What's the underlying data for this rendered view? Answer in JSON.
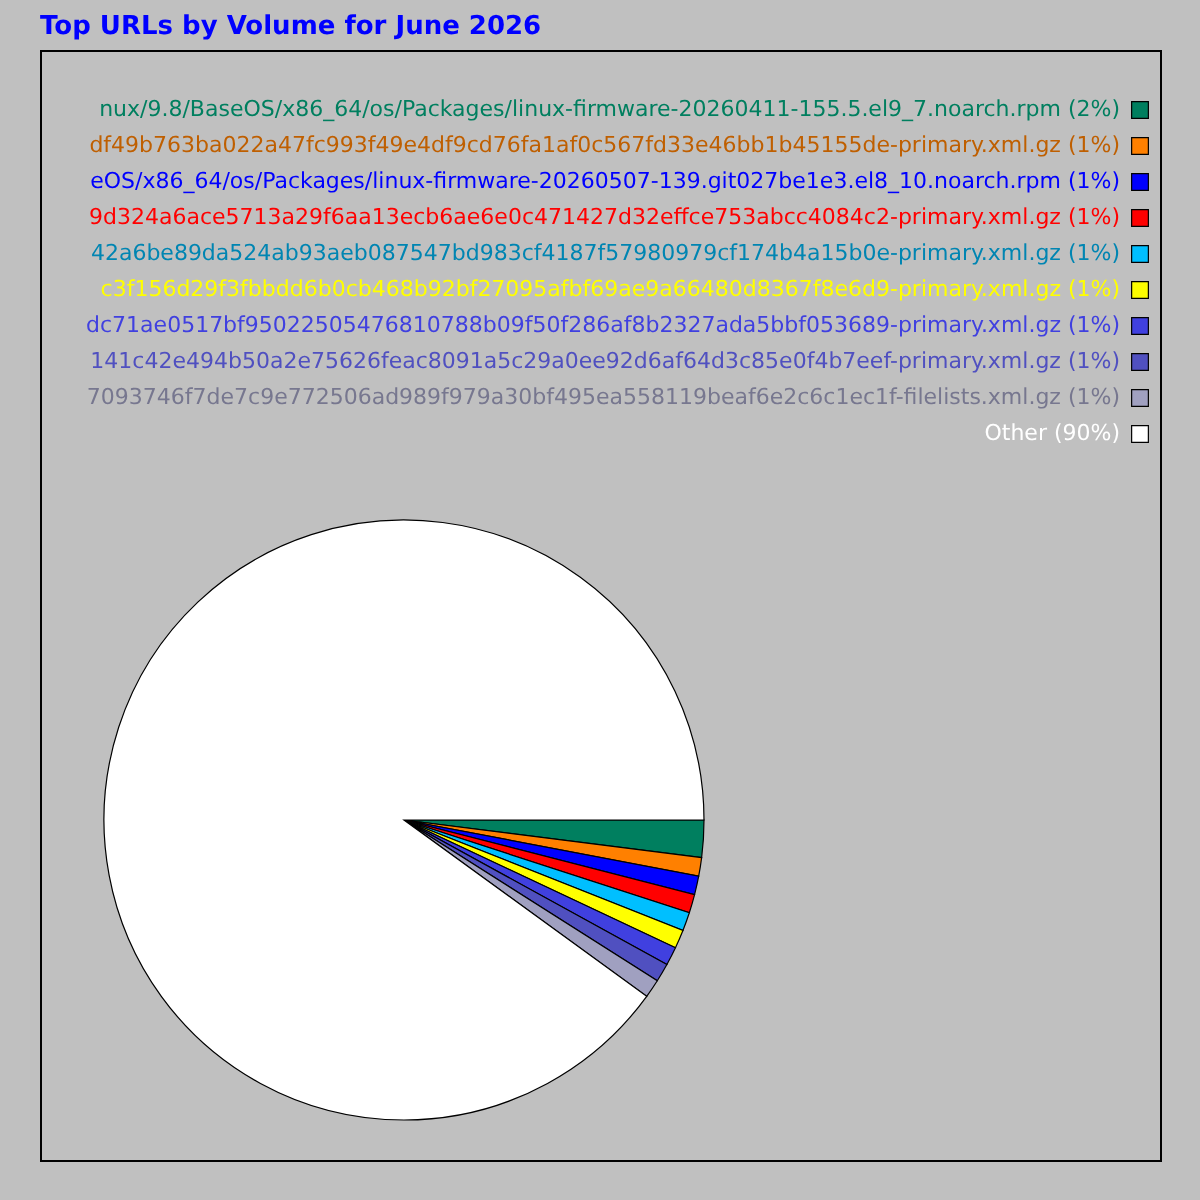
{
  "chart_data": {
    "type": "pie",
    "title": "Top URLs by Volume for June 2026",
    "categories": [
      "nux/9.8/BaseOS/x86_64/os/Packages/linux-firmware-20260411-155.5.el9_7.noarch.rpm",
      "df49b763ba022a47fc993f49e4df9cd76fa1af0c567fd33e46bb1b45155de-primary.xml.gz",
      "eOS/x86_64/os/Packages/linux-firmware-20260507-139.git027be1e3.el8_10.noarch.rpm",
      "9d324a6ace5713a29f6aa13ecb6ae6e0c471427d32effce753abcc4084c2-primary.xml.gz",
      "42a6be89da524ab93aeb087547bd983cf4187f57980979cf174b4a15b0e-primary.xml.gz",
      "c3f156d29f3fbbdd6b0cb468b92bf27095afbf69ae9a66480d8367f8e6d9-primary.xml.gz",
      "dc71ae0517bf95022505476810788b09f50f286af8b2327ada5bbf053689-primary.xml.gz",
      "141c42e494b50a2e75626feac8091a5c29a0ee92d6af64d3c85e0f4b7eef-primary.xml.gz",
      "7093746f7de7c9e772506ad989f979a30bf495ea558119beaf6e2c6c1ec1f-filelists.xml.gz",
      "Other"
    ],
    "values": [
      2,
      1,
      1,
      1,
      1,
      1,
      1,
      1,
      1,
      90
    ],
    "value_labels": [
      "(2%)",
      "(1%)",
      "(1%)",
      "(1%)",
      "(1%)",
      "(1%)",
      "(1%)",
      "(1%)",
      "(1%)",
      "(90%)"
    ],
    "colors": [
      "#007f5f",
      "#ff8000",
      "#0000ff",
      "#ff0000",
      "#00bfff",
      "#ffff00",
      "#4040e0",
      "#5050c0",
      "#a0a0c0",
      "#ffffff"
    ],
    "legend": "top right"
  }
}
